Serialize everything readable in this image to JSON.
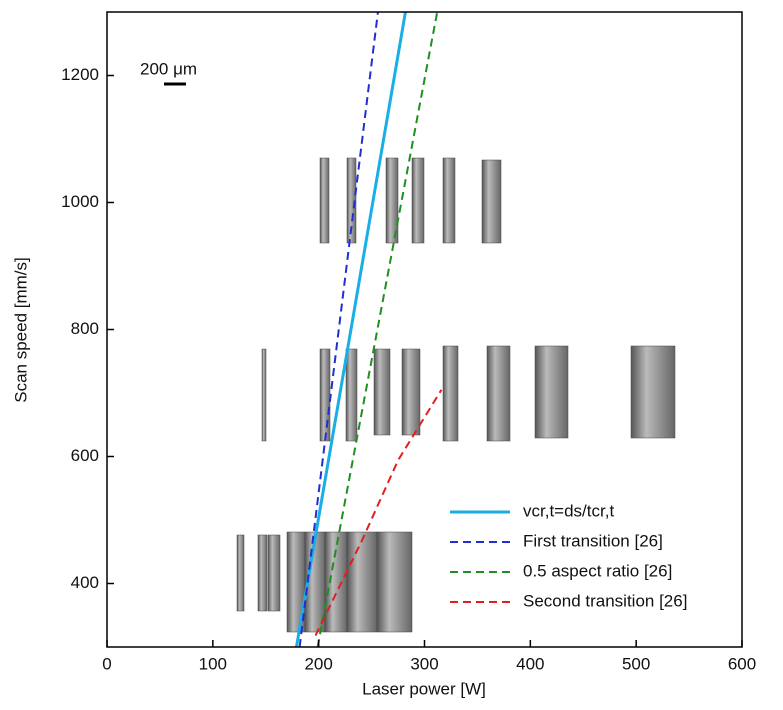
{
  "chart_data": {
    "type": "line",
    "xlabel": "Laser power [W]",
    "ylabel": "Scan speed [mm/s]",
    "xlim": [
      0,
      600
    ],
    "ylim": [
      300,
      1300
    ],
    "xticks": [
      0,
      100,
      200,
      300,
      400,
      500,
      600
    ],
    "yticks": [
      400,
      600,
      800,
      1000,
      1200
    ],
    "annotation": "200 μm",
    "legend": "lower right",
    "series": [
      {
        "name": "vcr,t=ds/tcr,t",
        "color": "#1aaee6",
        "style": "solid",
        "x": [
          179,
          282
        ],
        "values": [
          300,
          1300
        ]
      },
      {
        "name": "First transition [26]",
        "color": "#1f2fd0",
        "style": "dashed",
        "x": [
          182,
          256
        ],
        "values": [
          300,
          1300
        ]
      },
      {
        "name": "0.5 aspect ratio [26]",
        "color": "#1f8f1f",
        "style": "dashed",
        "x": [
          199,
          312
        ],
        "values": [
          300,
          1300
        ]
      },
      {
        "name": "Second transition [26]",
        "color": "#e02020",
        "style": "dashed",
        "x": [
          197,
          241,
          275,
          316
        ],
        "values": [
          318,
          468,
          594,
          705
        ]
      }
    ]
  }
}
